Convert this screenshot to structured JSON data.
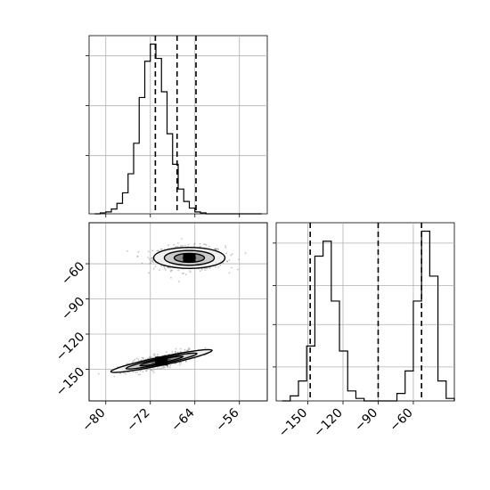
{
  "chart_data": [
    {
      "type": "histogram",
      "panel": "top-left",
      "variable_range": [
        -83,
        -51
      ],
      "grid": true,
      "bins": [
        -82,
        -81,
        -80,
        -79,
        -78,
        -77,
        -76,
        -75,
        -74,
        -73,
        -72,
        -71,
        -70,
        -69,
        -68,
        -67,
        -66,
        -65,
        -64,
        -63,
        -62,
        -61,
        -60,
        -59,
        -58,
        -57,
        -56,
        -55,
        -54,
        -53
      ],
      "counts": [
        0,
        1,
        2,
        5,
        11,
        22,
        42,
        74,
        122,
        160,
        178,
        163,
        128,
        84,
        52,
        26,
        13,
        6,
        2,
        1,
        0,
        0,
        0,
        0,
        0,
        0,
        0,
        0,
        0,
        0
      ],
      "quantile_lines": [
        -71.1,
        -67.2,
        -63.8
      ]
    },
    {
      "type": "scatter",
      "panel": "bottom-left",
      "x_range": [
        -83,
        -51
      ],
      "y_range": [
        -177,
        -25
      ],
      "x_ticks": [
        "-80",
        "-72",
        "-64",
        "-56"
      ],
      "y_ticks": [
        "-60",
        "-90",
        "-120",
        "-150"
      ],
      "grid": true,
      "clusters": [
        {
          "center": [
            -65,
            -55
          ],
          "spread": [
            3.2,
            5
          ]
        },
        {
          "center": [
            -70,
            -143
          ],
          "spread": [
            3,
            4
          ],
          "correlation": 0.75
        }
      ]
    },
    {
      "type": "histogram",
      "panel": "bottom-right",
      "variable_range": [
        -177,
        -25
      ],
      "x_ticks": [
        "-150",
        "-120",
        "-90",
        "-60"
      ],
      "grid": true,
      "bins": [
        -172,
        -165,
        -158,
        -151,
        -144,
        -137,
        -130,
        -123,
        -116,
        -109,
        -102,
        -95,
        -88,
        -81,
        -74,
        -67,
        -60,
        -53,
        -46,
        -39,
        -32
      ],
      "counts": [
        0,
        2,
        8,
        22,
        58,
        64,
        40,
        20,
        4,
        1,
        0,
        0,
        0,
        0,
        3,
        12,
        40,
        68,
        50,
        8,
        1
      ],
      "quantile_lines": [
        -148,
        -90,
        -53
      ]
    }
  ]
}
